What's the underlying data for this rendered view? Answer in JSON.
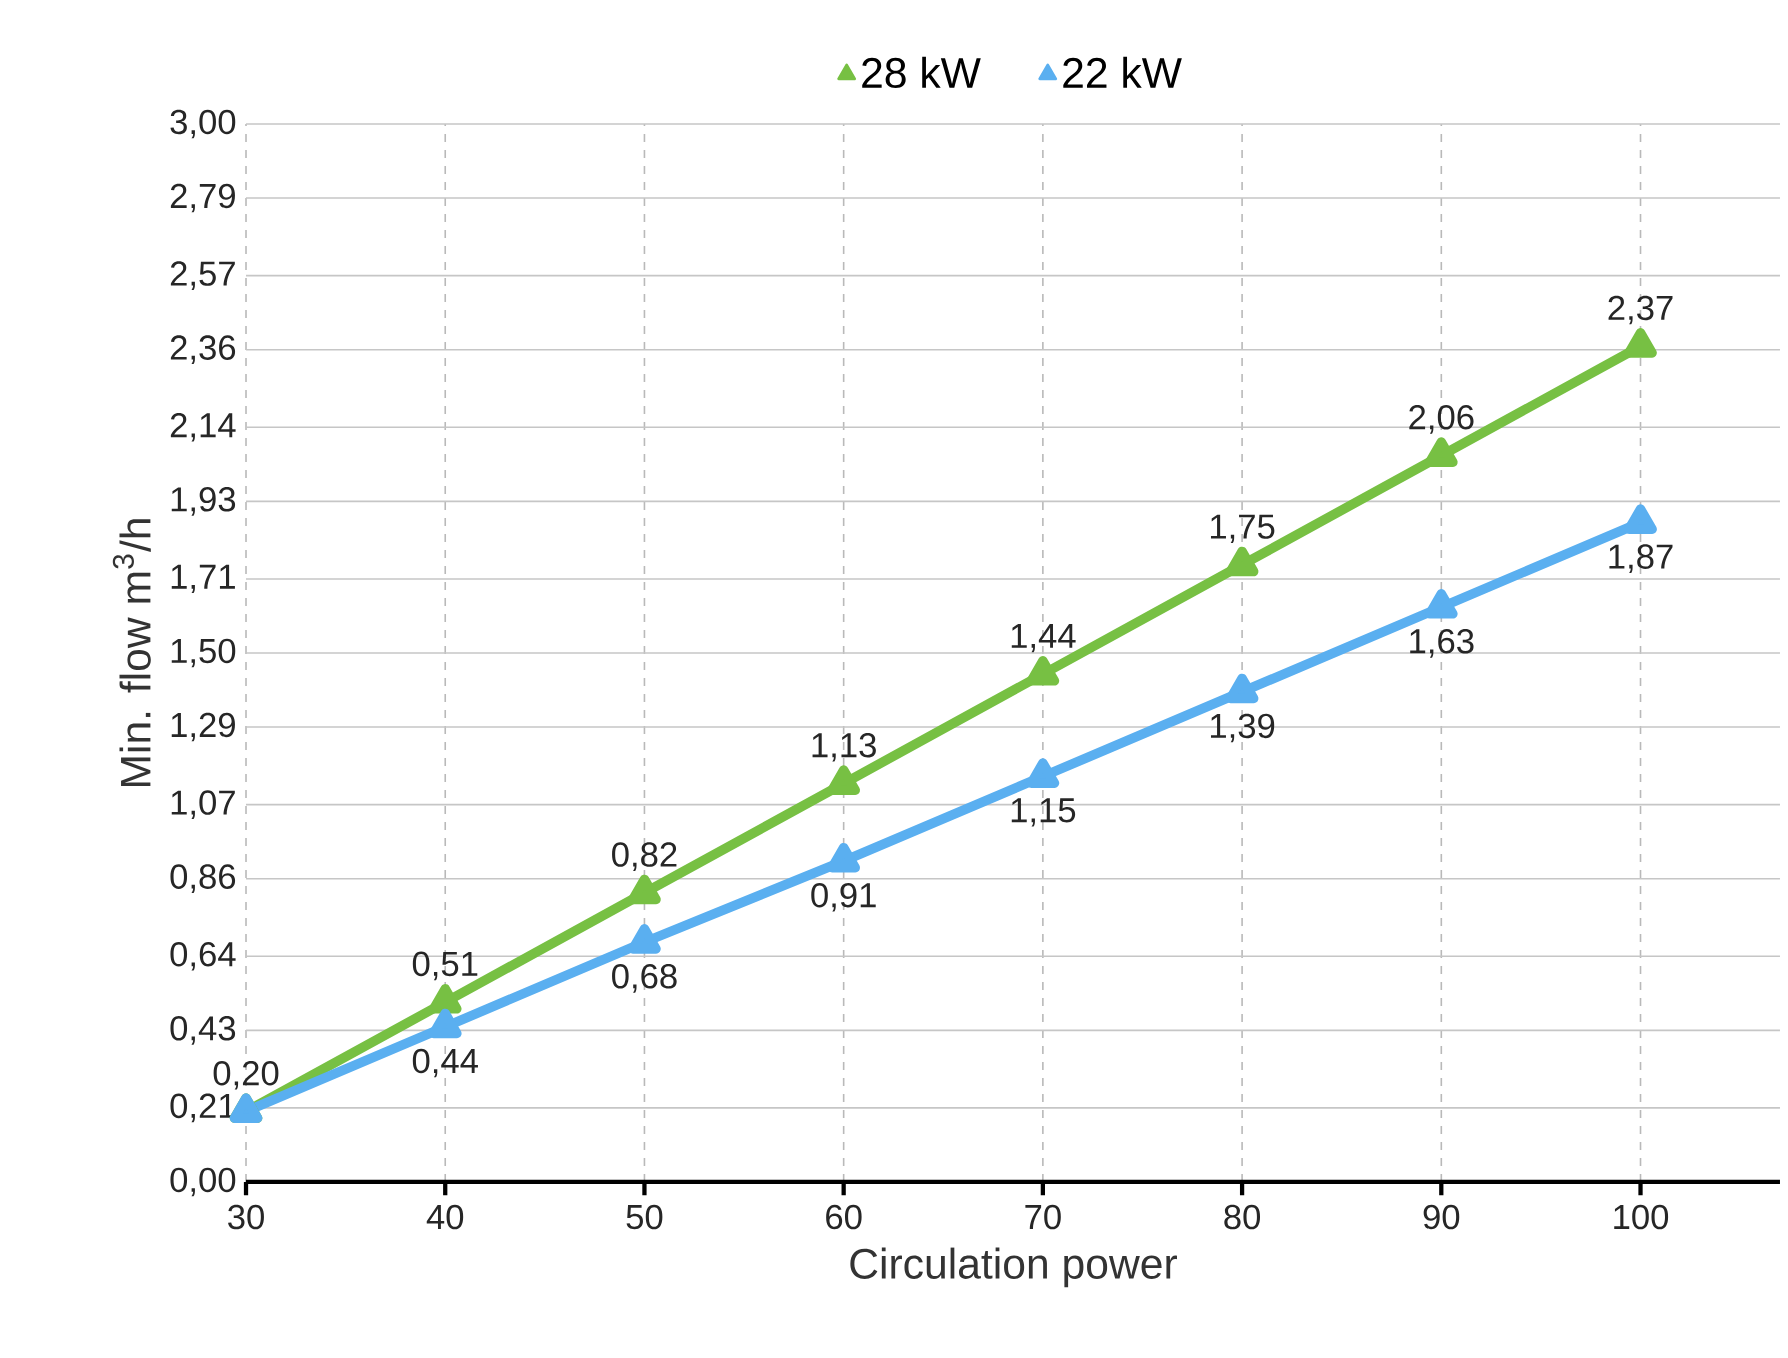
{
  "chart_data": {
    "type": "line",
    "xlabel": "Circulation power",
    "ylabel": "Min. flow m$^{3}$/h",
    "x": [
      30,
      40,
      50,
      60,
      70,
      80,
      90,
      100
    ],
    "series": [
      {
        "name": "22 kW",
        "color": "#5aaff0",
        "values": [
          0.2,
          0.44,
          0.68,
          0.91,
          1.15,
          1.39,
          1.63,
          1.87
        ],
        "value_labels": [
          null,
          "0,44",
          "0,68",
          "0,91",
          "1,15",
          "1,39",
          "1,63",
          "1,87"
        ]
      },
      {
        "name": "28 kW",
        "color": "#77c043",
        "values": [
          0.2,
          0.51,
          0.82,
          1.13,
          1.44,
          1.75,
          2.06,
          2.37
        ],
        "value_labels": [
          "0,20",
          "0,51",
          "0,82",
          "1,13",
          "1,44",
          "1,75",
          "2,06",
          "2,37"
        ]
      }
    ],
    "xlim": [
      30,
      107
    ],
    "xticks": [
      30,
      40,
      50,
      60,
      70,
      80,
      90,
      100
    ],
    "ylim": [
      0,
      3
    ],
    "yticks": [
      {
        "value": 0,
        "label": "0,00"
      },
      {
        "value": 0.21,
        "label": "0,21"
      },
      {
        "value": 0.43,
        "label": "0,43"
      },
      {
        "value": 0.64,
        "label": "0,64"
      },
      {
        "value": 0.86,
        "label": "0,86"
      },
      {
        "value": 1.07,
        "label": "1,07"
      },
      {
        "value": 1.29,
        "label": "1,29"
      },
      {
        "value": 1.5,
        "label": "1,50"
      },
      {
        "value": 1.71,
        "label": "1,71"
      },
      {
        "value": 1.93,
        "label": "1,93"
      },
      {
        "value": 2.14,
        "label": "2,14"
      },
      {
        "value": 2.36,
        "label": "2,36"
      },
      {
        "value": 2.57,
        "label": "2,57"
      },
      {
        "value": 2.79,
        "label": "2,79"
      },
      {
        "value": 3.0,
        "label": "3,00"
      }
    ],
    "grid": true,
    "legend": "top",
    "marker": "triangle",
    "line_style": "solid"
  }
}
